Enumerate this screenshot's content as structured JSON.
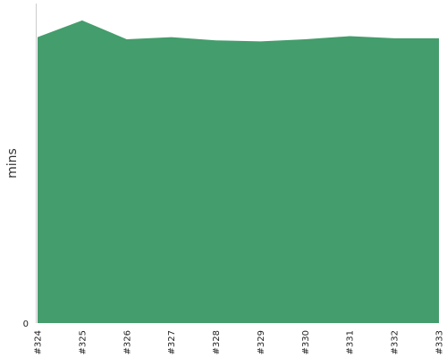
{
  "chart_data": {
    "type": "area",
    "categories": [
      "#324",
      "#325",
      "#326",
      "#327",
      "#328",
      "#329",
      "#330",
      "#331",
      "#332",
      "#333"
    ],
    "series": [
      {
        "values": [
          27.2,
          28.8,
          27.0,
          27.2,
          26.9,
          26.8,
          27.0,
          27.3,
          27.1,
          27.1
        ]
      }
    ],
    "ylabel": "mins",
    "yticks": [
      {
        "label": "0",
        "value": 0
      }
    ],
    "ylim": [
      0,
      30.4
    ],
    "grid": false,
    "legend": "none",
    "color": "#449d6c"
  }
}
